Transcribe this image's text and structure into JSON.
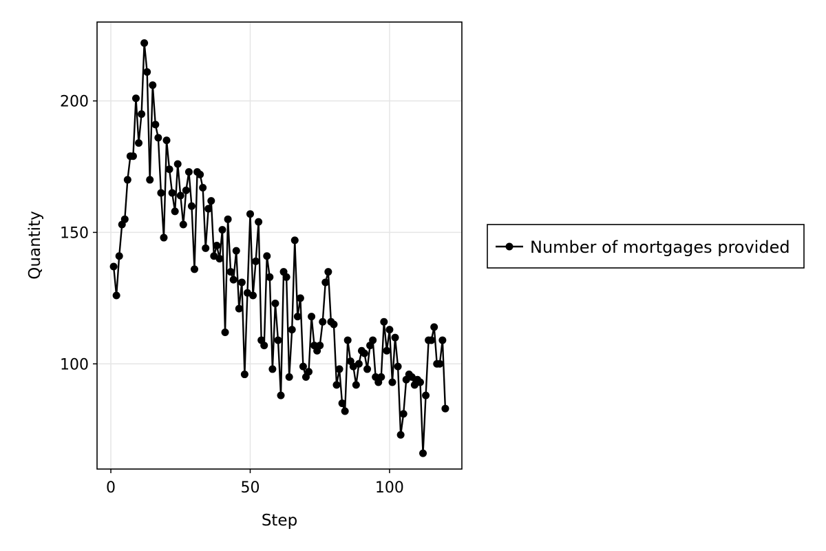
{
  "chart_data": {
    "type": "line",
    "xlabel": "Step",
    "ylabel": "Quantity",
    "xlim": [
      -4.95,
      125.95
    ],
    "ylim": [
      60,
      230
    ],
    "xticks": [
      0,
      50,
      100
    ],
    "yticks": [
      100,
      150,
      200
    ],
    "grid": true,
    "legend_position": "right",
    "colors": {
      "series": "#000000",
      "grid": "#e5e5e5",
      "frame": "#000000"
    },
    "series": [
      {
        "name": "Number of mortgages provided",
        "marker": "circle",
        "x": [
          1,
          2,
          3,
          4,
          5,
          6,
          7,
          8,
          9,
          10,
          11,
          12,
          13,
          14,
          15,
          16,
          17,
          18,
          19,
          20,
          21,
          22,
          23,
          24,
          25,
          26,
          27,
          28,
          29,
          30,
          31,
          32,
          33,
          34,
          35,
          36,
          37,
          38,
          39,
          40,
          41,
          42,
          43,
          44,
          45,
          46,
          47,
          48,
          49,
          50,
          51,
          52,
          53,
          54,
          55,
          56,
          57,
          58,
          59,
          60,
          61,
          62,
          63,
          64,
          65,
          66,
          67,
          68,
          69,
          70,
          71,
          72,
          73,
          74,
          75,
          76,
          77,
          78,
          79,
          80,
          81,
          82,
          83,
          84,
          85,
          86,
          87,
          88,
          89,
          90,
          91,
          92,
          93,
          94,
          95,
          96,
          97,
          98,
          99,
          100,
          101,
          102,
          103,
          104,
          105,
          106,
          107,
          108,
          109,
          110,
          111,
          112,
          113,
          114,
          115,
          116,
          117,
          118,
          119,
          120
        ],
        "y": [
          137,
          126,
          141,
          153,
          155,
          170,
          179,
          179,
          201,
          184,
          195,
          222,
          211,
          170,
          206,
          191,
          186,
          165,
          148,
          185,
          174,
          165,
          158,
          176,
          164,
          153,
          166,
          173,
          160,
          136,
          173,
          172,
          167,
          144,
          159,
          162,
          141,
          145,
          140,
          151,
          112,
          155,
          135,
          132,
          143,
          121,
          131,
          96,
          127,
          157,
          126,
          139,
          154,
          109,
          107,
          141,
          133,
          98,
          123,
          109,
          88,
          135,
          133,
          95,
          113,
          147,
          118,
          125,
          99,
          95,
          97,
          118,
          107,
          105,
          107,
          116,
          131,
          135,
          116,
          115,
          92,
          98,
          85,
          82,
          109,
          101,
          99,
          92,
          100,
          105,
          104,
          98,
          107,
          109,
          95,
          93,
          95,
          116,
          105,
          113,
          93,
          110,
          99,
          73,
          81,
          94,
          96,
          95,
          92,
          94,
          93,
          66,
          88,
          109,
          109,
          114,
          100,
          100,
          109,
          83
        ]
      }
    ]
  }
}
